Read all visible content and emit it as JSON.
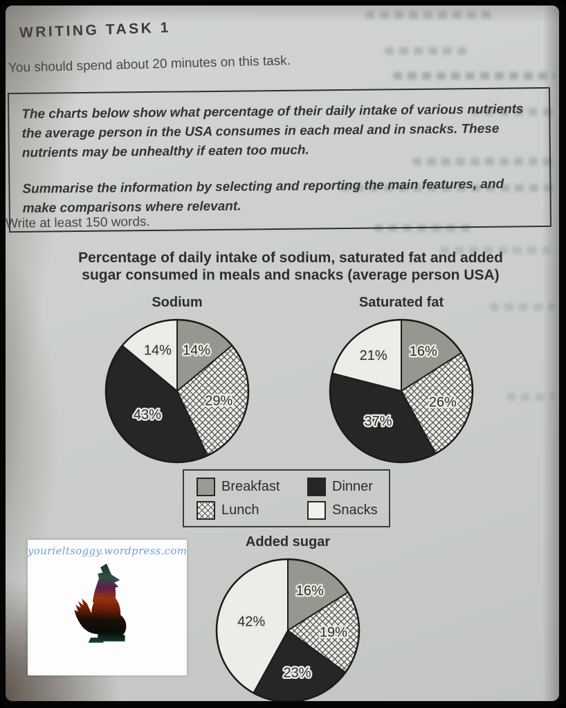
{
  "page": {
    "heading": "WRITING TASK 1",
    "instruction": "You should spend about 20 minutes on this task.",
    "task_box": {
      "paragraph1": "The charts below show what percentage of their daily intake of various nutrients the average person in the USA consumes in each meal and in snacks. These nutrients may be unhealthy if eaten too much.",
      "paragraph2": "Summarise the information by selecting and reporting the main features, and make comparisons where relevant."
    },
    "word_count_note": "Write at least 150 words.",
    "chart_heading_line1": "Percentage of daily intake of sodium, saturated fat and added",
    "chart_heading_line2": "sugar consumed in meals and snacks (average person USA)"
  },
  "chart_data": {
    "type": "pie",
    "title": "Percentage of daily intake of sodium, saturated fat and added sugar consumed in meals and snacks (average person USA)",
    "categories": [
      "Breakfast",
      "Lunch",
      "Dinner",
      "Snacks"
    ],
    "charts": [
      {
        "name": "Sodium",
        "values": [
          14,
          29,
          43,
          14
        ],
        "labels": [
          "14%",
          "29%",
          "43%",
          "14%"
        ]
      },
      {
        "name": "Saturated fat",
        "values": [
          16,
          26,
          37,
          21
        ],
        "labels": [
          "16%",
          "26%",
          "37%",
          "21%"
        ]
      },
      {
        "name": "Added sugar",
        "values": [
          16,
          19,
          23,
          42
        ],
        "labels": [
          "16%",
          "19%",
          "23%",
          "42%"
        ]
      }
    ],
    "legend": [
      {
        "label": "Breakfast",
        "fill": "gray",
        "color": "#9b9b94"
      },
      {
        "label": "Lunch",
        "fill": "crosshatch",
        "color": "#efeee8"
      },
      {
        "label": "Dinner",
        "fill": "black",
        "color": "#262626"
      },
      {
        "label": "Snacks",
        "fill": "white",
        "color": "#f1f0ea"
      }
    ],
    "legend_position": "between-charts",
    "start_angle": "top",
    "direction": "clockwise"
  },
  "watermark": {
    "url_text": "yourieltsoggy.wordpress.com",
    "logo": "howling-wolf-silhouette",
    "text_color": "#6f9fe3"
  }
}
